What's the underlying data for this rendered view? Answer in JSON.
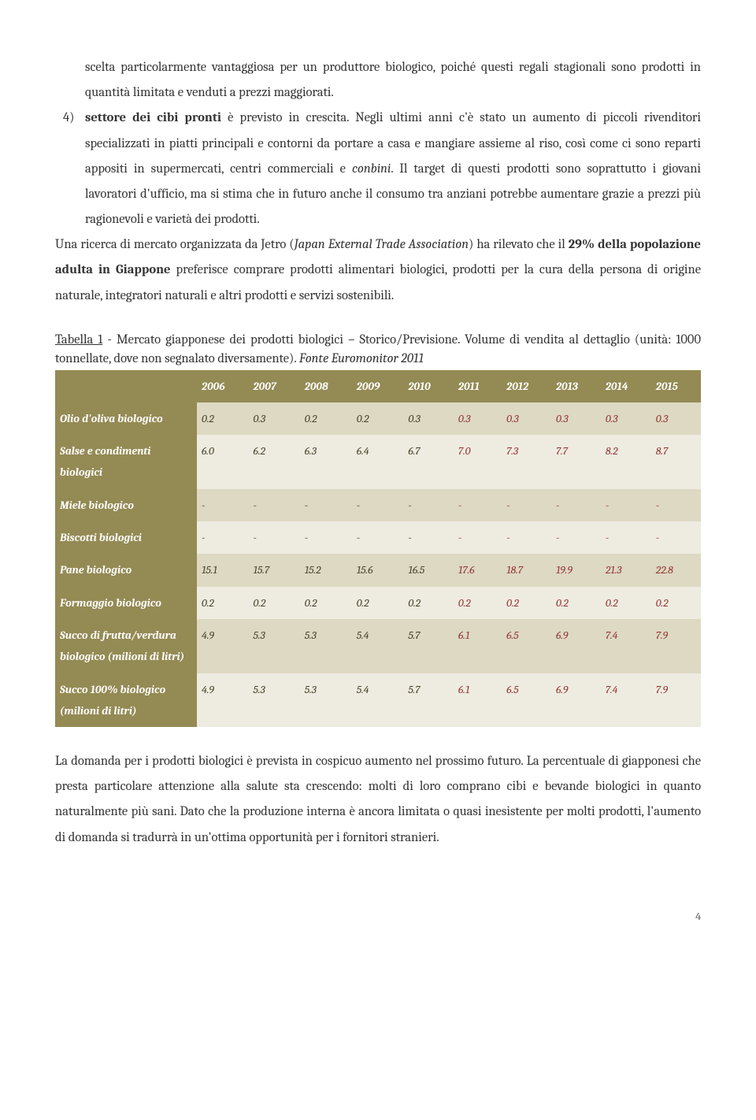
{
  "intro": {
    "p1_a": "scelta particolarmente vantaggiosa per un produttore biologico, poiché questi regali stagionali sono prodotti in quantità limitata e venduti a prezzi maggiorati.",
    "item4_num": "4)",
    "item4_lead": "settore dei cibi pronti",
    "item4_rest_a": " è previsto in crescita. Negli ultimi anni c'è stato un aumento di piccoli rivenditori specializzati in piatti principali e contorni da portare a casa e mangiare assieme al riso, così come ci sono reparti appositi in supermercati, centri commerciali e ",
    "item4_conbini": "conbini",
    "item4_rest_b": ". Il target di questi prodotti sono soprattutto i giovani lavoratori d'ufficio, ma si stima che in futuro anche il consumo tra anziani potrebbe aumentare grazie a prezzi più ragionevoli e varietà dei prodotti.",
    "p2_a": "Una ricerca di mercato organizzata da Jetro (",
    "p2_jetro": "Japan External Trade Association",
    "p2_b": ") ha rilevato che il ",
    "p2_bold": "29% della popolazione adulta in Giappone",
    "p2_c": " preferisce comprare prodotti alimentari biologici, prodotti per la cura della persona di origine naturale, integratori naturali e altri prodotti e servizi sostenibili."
  },
  "caption": {
    "label": "Tabella 1",
    "rest": " - Mercato giapponese dei prodotti biologici – Storico/Previsione. Volume di vendita al dettaglio (unità: 1000 tonnellate, dove non segnalato diversamente). ",
    "src": "Fonte Euromonitor 2011"
  },
  "table": {
    "colors": {
      "header_bg": "#948a54",
      "rowhead_bg": "#948a54",
      "row_odd_bg": "#ddd9c3",
      "row_even_bg": "#eeece1",
      "hist_text": "#4a452a",
      "fcst_text": "#953734"
    },
    "years": [
      "2006",
      "2007",
      "2008",
      "2009",
      "2010",
      "2011",
      "2012",
      "2013",
      "2014",
      "2015"
    ],
    "forecast_start_index": 5,
    "rows": [
      {
        "label": "Olio d'oliva biologico",
        "vals": [
          "0.2",
          "0.3",
          "0.2",
          "0.2",
          "0.3",
          "0.3",
          "0.3",
          "0.3",
          "0.3",
          "0.3"
        ]
      },
      {
        "label": "Salse e condimenti biologici",
        "vals": [
          "6.0",
          "6.2",
          "6.3",
          "6.4",
          "6.7",
          "7.0",
          "7.3",
          "7.7",
          "8.2",
          "8.7"
        ]
      },
      {
        "label": "Miele biologico",
        "vals": [
          "-",
          "-",
          "-",
          "-",
          "-",
          "-",
          "-",
          "-",
          "-",
          "-"
        ]
      },
      {
        "label": "Biscotti biologici",
        "vals": [
          "-",
          "-",
          "-",
          "-",
          "-",
          "-",
          "-",
          "-",
          "-",
          "-"
        ]
      },
      {
        "label": "Pane biologico",
        "vals": [
          "15.1",
          "15.7",
          "15.2",
          "15.6",
          "16.5",
          "17.6",
          "18.7",
          "19.9",
          "21.3",
          "22.8"
        ]
      },
      {
        "label": "Formaggio biologico",
        "vals": [
          "0.2",
          "0.2",
          "0.2",
          "0.2",
          "0.2",
          "0.2",
          "0.2",
          "0.2",
          "0.2",
          "0.2"
        ]
      },
      {
        "label": "Succo di frutta/verdura biologico (milioni di litri)",
        "vals": [
          "4.9",
          "5.3",
          "5.3",
          "5.4",
          "5.7",
          "6.1",
          "6.5",
          "6.9",
          "7.4",
          "7.9"
        ]
      },
      {
        "label": "Succo 100% biologico (milioni di litri)",
        "vals": [
          "4.9",
          "5.3",
          "5.3",
          "5.4",
          "5.7",
          "6.1",
          "6.5",
          "6.9",
          "7.4",
          "7.9"
        ]
      }
    ]
  },
  "closing": "La domanda per i prodotti biologici è prevista in cospicuo aumento nel prossimo futuro. La percentuale di giapponesi che presta particolare attenzione alla salute sta crescendo: molti di loro comprano cibi e bevande biologici in quanto naturalmente più sani. Dato che la produzione interna è ancora limitata o quasi inesistente per molti prodotti, l'aumento di domanda si tradurrà in un'ottima opportunità per i fornitori stranieri.",
  "page_num": "4"
}
